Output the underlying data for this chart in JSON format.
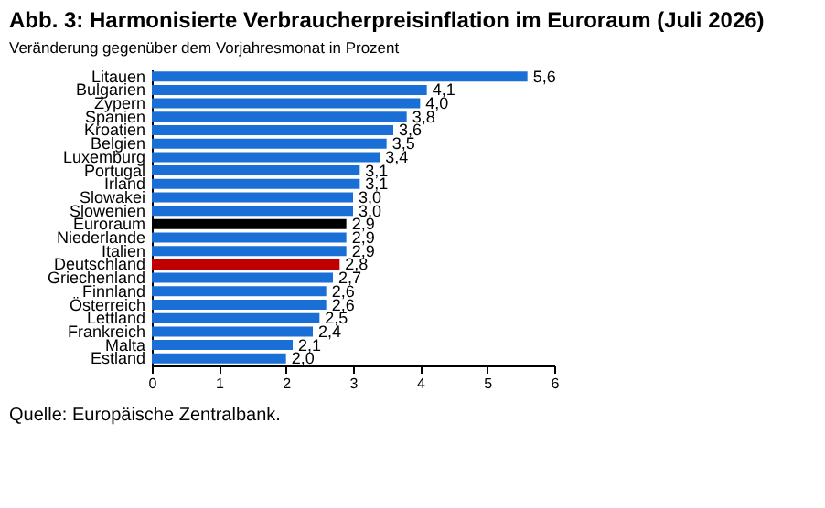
{
  "chart_data": {
    "type": "bar",
    "orientation": "horizontal",
    "title": "Abb. 3: Harmonisierte Verbraucherpreisinflation im Euroraum (Juli 2026)",
    "subtitle": "Veränderung gegenüber dem Vorjahresmonat in Prozent",
    "categories": [
      "Litauen",
      "Bulgarien",
      "Zypern",
      "Spanien",
      "Kroatien",
      "Belgien",
      "Luxemburg",
      "Portugal",
      "Irland",
      "Slowakei",
      "Slowenien",
      "Euroraum",
      "Niederlande",
      "Italien",
      "Deutschland",
      "Griechenland",
      "Finnland",
      "Österreich",
      "Lettland",
      "Frankreich",
      "Malta",
      "Estland"
    ],
    "values": [
      5.6,
      4.1,
      4.0,
      3.8,
      3.6,
      3.5,
      3.4,
      3.1,
      3.1,
      3.0,
      3.0,
      2.9,
      2.9,
      2.9,
      2.8,
      2.7,
      2.6,
      2.6,
      2.5,
      2.4,
      2.1,
      2.0
    ],
    "value_labels": [
      "5,6",
      "4,1",
      "4,0",
      "3,8",
      "3,6",
      "3,5",
      "3,4",
      "3,1",
      "3,1",
      "3,0",
      "3,0",
      "2,9",
      "2,9",
      "2,9",
      "2,8",
      "2,7",
      "2,6",
      "2,6",
      "2,5",
      "2,4",
      "2,1",
      "2,0"
    ],
    "colors": [
      "#1a6fd6",
      "#1a6fd6",
      "#1a6fd6",
      "#1a6fd6",
      "#1a6fd6",
      "#1a6fd6",
      "#1a6fd6",
      "#1a6fd6",
      "#1a6fd6",
      "#1a6fd6",
      "#1a6fd6",
      "#000000",
      "#1a6fd6",
      "#1a6fd6",
      "#c00000",
      "#1a6fd6",
      "#1a6fd6",
      "#1a6fd6",
      "#1a6fd6",
      "#1a6fd6",
      "#1a6fd6",
      "#1a6fd6"
    ],
    "xlim": [
      0,
      6
    ],
    "xticks": [
      0,
      1,
      2,
      3,
      4,
      5,
      6
    ],
    "grid": false,
    "annotations": [
      "Quelle: Europäische Zentralbank."
    ]
  }
}
